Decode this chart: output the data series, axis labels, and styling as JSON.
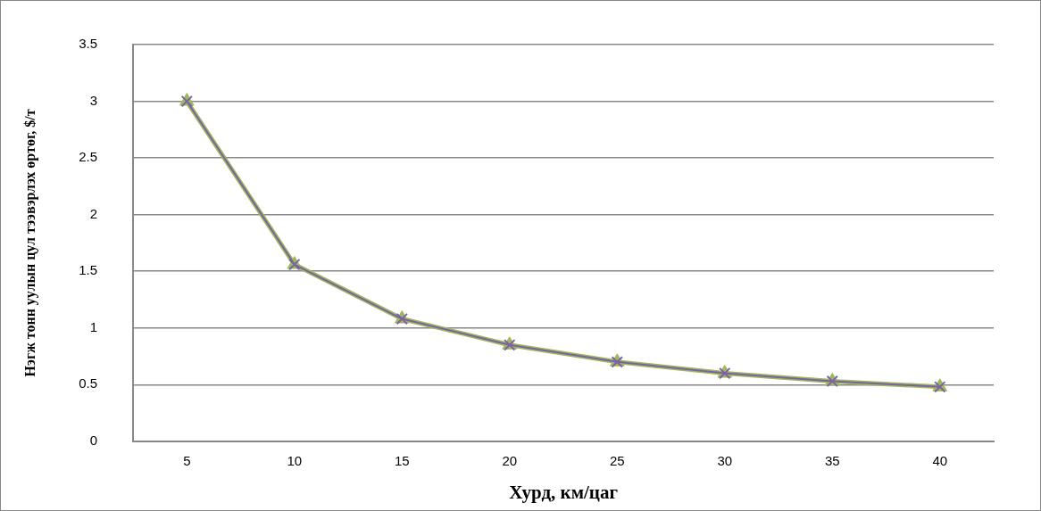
{
  "chart_data": {
    "type": "line",
    "xlabel": "Хурд, км/цаг",
    "ylabel": "Нэгж тонн уулын цул тээвэрлэх өртөг, $/т",
    "categories": [
      "5",
      "10",
      "15",
      "20",
      "25",
      "30",
      "35",
      "40"
    ],
    "series": [
      {
        "color": "#7f60a8",
        "marker": "cross",
        "values": [
          3.0,
          1.56,
          1.08,
          0.85,
          0.7,
          0.6,
          0.53,
          0.48
        ]
      },
      {
        "color": "#9bbb59",
        "marker": "triangle",
        "values": [
          3.0,
          1.56,
          1.08,
          0.85,
          0.7,
          0.6,
          0.53,
          0.48
        ]
      }
    ],
    "ylim": [
      0,
      3.5
    ],
    "yticks": [
      0,
      0.5,
      1,
      1.5,
      2,
      2.5,
      3,
      3.5
    ],
    "grid": "y",
    "legend": false
  }
}
